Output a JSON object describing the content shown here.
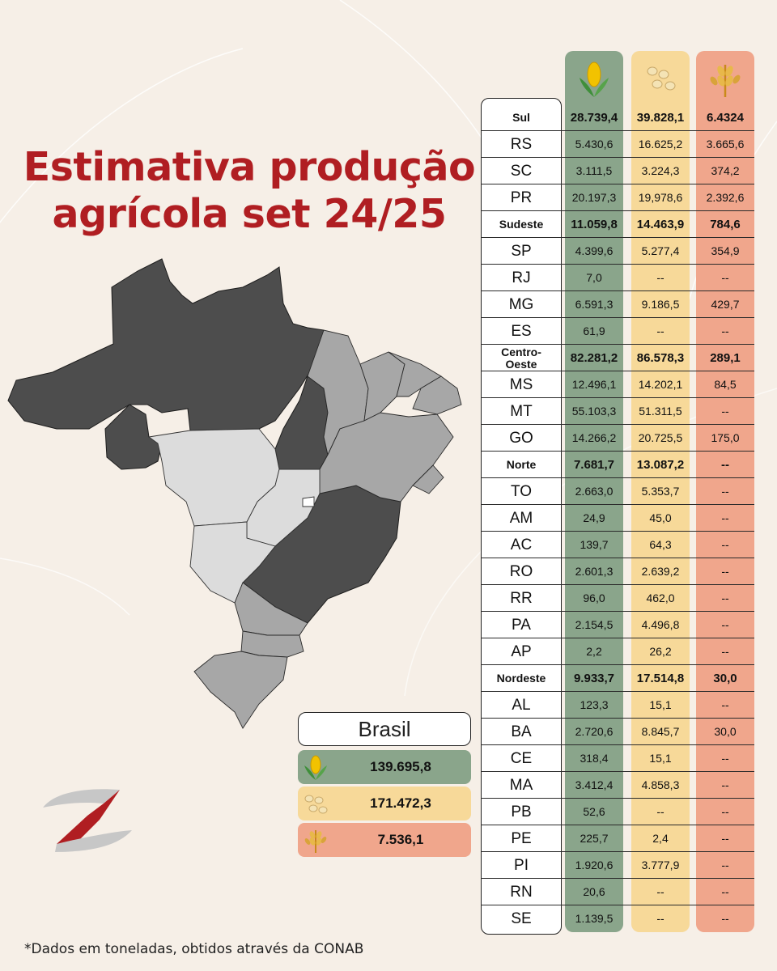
{
  "title": "Estimativa produção agrícola set 24/25",
  "footnote": "*Dados em toneladas, obtidos através da CONAB",
  "colors": {
    "title": "#b01e22",
    "corn": "#8aa58b",
    "soy": "#f7d999",
    "wheat": "#f0a68c",
    "background": "#f6efe7"
  },
  "column_icons": [
    "corn-icon",
    "soybean-icon",
    "wheat-icon"
  ],
  "brasil": {
    "label": "Brasil",
    "corn": "139.695,8",
    "soy": "171.472,3",
    "wheat": "7.536,1"
  },
  "rows": [
    {
      "name": "Sul",
      "corn": "28.739,4",
      "soy": "39.828,1",
      "wheat": "6.4324",
      "region": true
    },
    {
      "name": "RS",
      "corn": "5.430,6",
      "soy": "16.625,2",
      "wheat": "3.665,6"
    },
    {
      "name": "SC",
      "corn": "3.111,5",
      "soy": "3.224,3",
      "wheat": "374,2"
    },
    {
      "name": "PR",
      "corn": "20.197,3",
      "soy": "19,978,6",
      "wheat": "2.392,6"
    },
    {
      "name": "Sudeste",
      "corn": "11.059,8",
      "soy": "14.463,9",
      "wheat": "784,6",
      "region": true
    },
    {
      "name": "SP",
      "corn": "4.399,6",
      "soy": "5.277,4",
      "wheat": "354,9"
    },
    {
      "name": "RJ",
      "corn": "7,0",
      "soy": "--",
      "wheat": "--"
    },
    {
      "name": "MG",
      "corn": "6.591,3",
      "soy": "9.186,5",
      "wheat": "429,7"
    },
    {
      "name": "ES",
      "corn": "61,9",
      "soy": "--",
      "wheat": "--"
    },
    {
      "name": "Centro-Oeste",
      "corn": "82.281,2",
      "soy": "86.578,3",
      "wheat": "289,1",
      "region": true
    },
    {
      "name": "MS",
      "corn": "12.496,1",
      "soy": "14.202,1",
      "wheat": "84,5"
    },
    {
      "name": "MT",
      "corn": "55.103,3",
      "soy": "51.311,5",
      "wheat": "--"
    },
    {
      "name": "GO",
      "corn": "14.266,2",
      "soy": "20.725,5",
      "wheat": "175,0"
    },
    {
      "name": "Norte",
      "corn": "7.681,7",
      "soy": "13.087,2",
      "wheat": "--",
      "region": true
    },
    {
      "name": "TO",
      "corn": "2.663,0",
      "soy": "5.353,7",
      "wheat": "--"
    },
    {
      "name": "AM",
      "corn": "24,9",
      "soy": "45,0",
      "wheat": "--"
    },
    {
      "name": "AC",
      "corn": "139,7",
      "soy": "64,3",
      "wheat": "--"
    },
    {
      "name": "RO",
      "corn": "2.601,3",
      "soy": "2.639,2",
      "wheat": "--"
    },
    {
      "name": "RR",
      "corn": "96,0",
      "soy": "462,0",
      "wheat": "--"
    },
    {
      "name": "PA",
      "corn": "2.154,5",
      "soy": "4.496,8",
      "wheat": "--"
    },
    {
      "name": "AP",
      "corn": "2,2",
      "soy": "26,2",
      "wheat": "--"
    },
    {
      "name": "Nordeste",
      "corn": "9.933,7",
      "soy": "17.514,8",
      "wheat": "30,0",
      "region": true
    },
    {
      "name": "AL",
      "corn": "123,3",
      "soy": "15,1",
      "wheat": "--"
    },
    {
      "name": "BA",
      "corn": "2.720,6",
      "soy": "8.845,7",
      "wheat": "30,0"
    },
    {
      "name": "CE",
      "corn": "318,4",
      "soy": "15,1",
      "wheat": "--"
    },
    {
      "name": "MA",
      "corn": "3.412,4",
      "soy": "4.858,3",
      "wheat": "--"
    },
    {
      "name": "PB",
      "corn": "52,6",
      "soy": "--",
      "wheat": "--"
    },
    {
      "name": "PE",
      "corn": "225,7",
      "soy": "2,4",
      "wheat": "--"
    },
    {
      "name": "PI",
      "corn": "1.920,6",
      "soy": "3.777,9",
      "wheat": "--"
    },
    {
      "name": "RN",
      "corn": "20,6",
      "soy": "--",
      "wheat": "--"
    },
    {
      "name": "SE",
      "corn": "1.139,5",
      "soy": "--",
      "wheat": "--"
    }
  ]
}
